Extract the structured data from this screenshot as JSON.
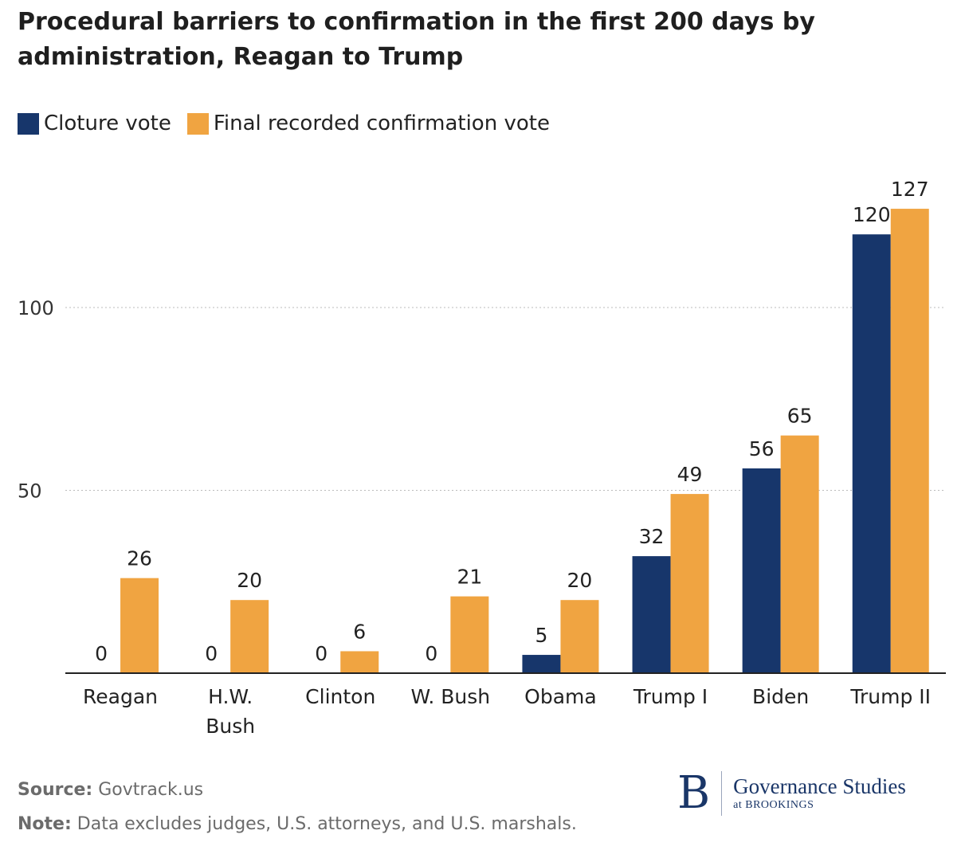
{
  "title": "Procedural barriers to confirmation in the first 200 days by administration, Reagan to Trump",
  "legend": {
    "cloture": "Cloture vote",
    "final": "Final recorded confirmation vote"
  },
  "colors": {
    "cloture": "#17366b",
    "final": "#f0a441",
    "grid": "#bbbbbb",
    "axis": "#222222"
  },
  "chart_data": {
    "type": "bar",
    "categories": [
      "Reagan",
      "H.W. Bush",
      "Clinton",
      "W. Bush",
      "Obama",
      "Trump I",
      "Biden",
      "Trump II"
    ],
    "category_lines": [
      [
        "Reagan"
      ],
      [
        "H.W.",
        "Bush"
      ],
      [
        "Clinton"
      ],
      [
        "W. Bush"
      ],
      [
        "Obama"
      ],
      [
        "Trump I"
      ],
      [
        "Biden"
      ],
      [
        "Trump II"
      ]
    ],
    "series": [
      {
        "name": "Cloture vote",
        "values": [
          0,
          0,
          0,
          0,
          5,
          32,
          56,
          120
        ]
      },
      {
        "name": "Final recorded confirmation vote",
        "values": [
          26,
          20,
          6,
          21,
          20,
          49,
          65,
          127
        ]
      }
    ],
    "yticks": [
      50,
      100
    ],
    "ylim": [
      0,
      127
    ],
    "grid": true,
    "legend_position": "top-left",
    "data_labels": true
  },
  "footer": {
    "source_label": "Source:",
    "source_text": "Govtrack.us",
    "note_label": "Note:",
    "note_text": "Data excludes judges, U.S. attorneys, and U.S. marshals."
  },
  "logo": {
    "mark": "B",
    "name": "Governance Studies",
    "sub": "at BROOKINGS"
  }
}
